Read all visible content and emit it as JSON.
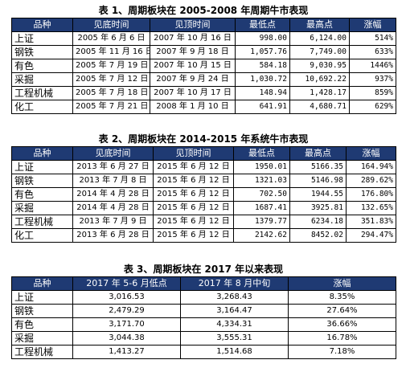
{
  "table1": {
    "title": "表 1、周期板块在 2005-2008 年周期牛市表现",
    "headers": [
      "品种",
      "见底时间",
      "见顶时间",
      "最低点",
      "最高点",
      "涨幅"
    ],
    "rows": [
      [
        "上证",
        "2005 年 6 月 6 日",
        "2007 年 10 月 16 日",
        "998.00",
        "6,124.00",
        "514%"
      ],
      [
        "钢铁",
        "2005 年 11 月 16 日",
        "2007 年 9 月 18 日",
        "1,057.76",
        "7,749.00",
        "633%"
      ],
      [
        "有色",
        "2005 年 7 月 19 日",
        "2007 年 10 月 15 日",
        "584.18",
        "9,030.95",
        "1446%"
      ],
      [
        "采掘",
        "2005 年 7 月 12 日",
        "2007 年 9 月 24 日",
        "1,030.72",
        "10,692.22",
        "937%"
      ],
      [
        "工程机械",
        "2005 年 7 月 18 日",
        "2007 年 10 月 17 日",
        "148.94",
        "1,428.17",
        "859%"
      ],
      [
        "化工",
        "2005 年 7 月 21 日",
        "2008 年 1 月 10 日",
        "641.91",
        "4,680.71",
        "629%"
      ]
    ]
  },
  "table2": {
    "title": "表 2、周期板块在 2014-2015 年系统牛市表现",
    "headers": [
      "品种",
      "见底时间",
      "见顶时间",
      "最低点",
      "最高点",
      "涨幅"
    ],
    "rows": [
      [
        "上证",
        "2013 年 6 月 27 日",
        "2015 年 6 月 12 日",
        "1950.01",
        "5166.35",
        "164.94%"
      ],
      [
        "钢铁",
        "2013 年 7 月 8 日",
        "2015 年 6 月 12 日",
        "1321.03",
        "5146.98",
        "289.62%"
      ],
      [
        "有色",
        "2014 年 4 月 28 日",
        "2015 年 6 月 12 日",
        "702.50",
        "1944.55",
        "176.80%"
      ],
      [
        "采掘",
        "2014 年 4 月 28 日",
        "2015 年 6 月 12 日",
        "1687.41",
        "3925.81",
        "132.65%"
      ],
      [
        "工程机械",
        "2013 年 7 月 9 日",
        "2015 年 6 月 12 日",
        "1379.77",
        "6234.18",
        "351.83%"
      ],
      [
        "化工",
        "2013 年 6 月 28 日",
        "2015 年 6 月 12 日",
        "2142.62",
        "8452.02",
        "294.47%"
      ]
    ]
  },
  "table3": {
    "title": "表 3、周期板块在 2017 年以来表现",
    "headers": [
      "品种",
      "2017 年 5-6 月低点",
      "2017 年 8 月中旬",
      "涨幅"
    ],
    "rows": [
      [
        "上证",
        "3,016.53",
        "3,268.43",
        "8.35%"
      ],
      [
        "钢铁",
        "2,479.29",
        "3,164.47",
        "27.64%"
      ],
      [
        "有色",
        "3,171.70",
        "4,334.31",
        "36.66%"
      ],
      [
        "采掘",
        "3,044.38",
        "3,555.31",
        "16.78%"
      ],
      [
        "工程机械",
        "1,413.27",
        "1,514.68",
        "7.18%"
      ]
    ]
  }
}
